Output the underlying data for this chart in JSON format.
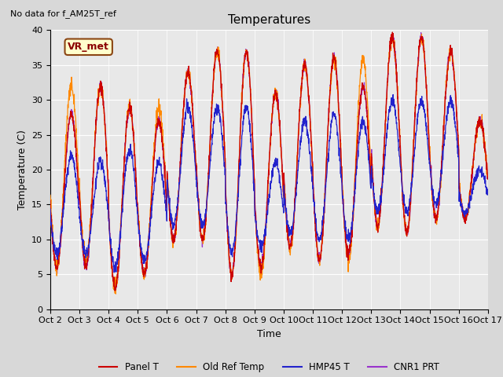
{
  "title": "Temperatures",
  "xlabel": "Time",
  "ylabel": "Temperature (C)",
  "annotation": "No data for f_AM25T_ref",
  "legend_label": "VR_met",
  "ylim": [
    0,
    40
  ],
  "series_labels": [
    "Panel T",
    "Old Ref Temp",
    "HMP45 T",
    "CNR1 PRT"
  ],
  "series_colors": [
    "#cc0000",
    "#ff8800",
    "#2222cc",
    "#9933cc"
  ],
  "x_tick_labels": [
    "Oct 2",
    "Oct 3",
    "Oct 4",
    "Oct 5",
    "Oct 6",
    "Oct 7",
    "Oct 8",
    "Oct 9",
    "Oct 10",
    "Oct 11",
    "Oct 12",
    "Oct 13",
    "Oct 14",
    "Oct 15",
    "Oct 16",
    "Oct 17"
  ],
  "background_color": "#d8d8d8",
  "plot_bg_color": "#e8e8e8",
  "n_days": 15,
  "n_points_per_day": 144,
  "mins_panel": [
    6,
    6,
    3,
    5,
    10,
    10,
    5,
    6,
    9,
    7,
    8,
    12,
    11,
    13,
    13
  ],
  "maxs_panel": [
    28,
    32,
    29,
    27,
    34,
    37,
    37,
    31,
    35,
    36,
    32,
    39,
    39,
    37,
    27
  ],
  "mins_oldref": [
    6,
    7,
    3,
    5,
    10,
    10,
    5,
    5,
    9,
    7,
    7,
    12,
    11,
    13,
    13
  ],
  "maxs_oldref": [
    32,
    32,
    29,
    29,
    34,
    37,
    37,
    31,
    35,
    36,
    36,
    39,
    39,
    37,
    27
  ],
  "mins_hmp45": [
    8,
    8,
    6,
    7,
    12,
    12,
    8,
    9,
    11,
    10,
    10,
    14,
    14,
    15,
    14
  ],
  "maxs_hmp45": [
    22,
    21,
    23,
    21,
    29,
    29,
    29,
    21,
    27,
    28,
    27,
    30,
    30,
    30,
    20
  ],
  "mins_cnr1": [
    6,
    6,
    3,
    5,
    10,
    10,
    5,
    6,
    9,
    7,
    8,
    12,
    11,
    13,
    13
  ],
  "maxs_cnr1": [
    28,
    32,
    29,
    27,
    34,
    37,
    37,
    31,
    35,
    36,
    32,
    39,
    39,
    37,
    27
  ],
  "title_fontsize": 11,
  "axis_fontsize": 9,
  "tick_fontsize": 8
}
